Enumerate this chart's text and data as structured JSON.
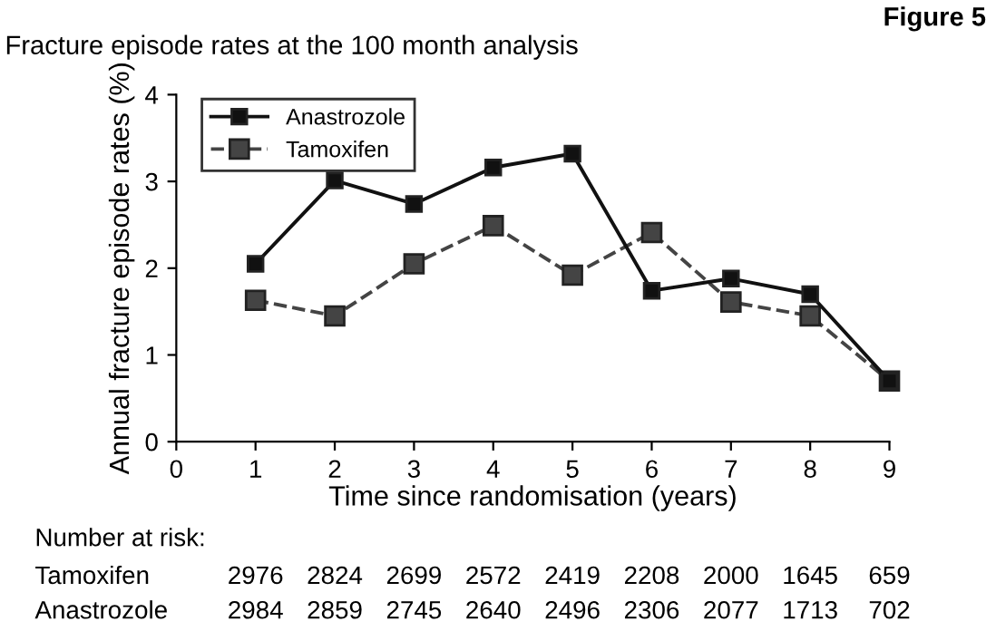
{
  "chart_data": {
    "type": "line",
    "title": "Fracture episode rates at the 100 month analysis",
    "xlabel": "Time since randomisation (years)",
    "ylabel": "Annual fracture episode rates (%)",
    "x": [
      1,
      2,
      3,
      4,
      5,
      6,
      7,
      8,
      9
    ],
    "series": [
      {
        "name": "Anastrozole",
        "color": "#111111",
        "line_style": "solid",
        "values": [
          2.05,
          3.01,
          2.74,
          3.16,
          3.32,
          1.74,
          1.88,
          1.7,
          0.7
        ]
      },
      {
        "name": "Tamoxifen",
        "color": "#444444",
        "line_style": "dashed",
        "values": [
          1.63,
          1.45,
          2.05,
          2.49,
          1.92,
          2.41,
          1.61,
          1.45,
          0.7
        ]
      }
    ],
    "xlim": [
      0,
      9
    ],
    "xticks": [
      0,
      1,
      2,
      3,
      4,
      5,
      6,
      7,
      8,
      9
    ],
    "ylim": [
      0,
      4
    ],
    "yticks": [
      0,
      1,
      2,
      3,
      4
    ],
    "marker": "square",
    "legend": "top left",
    "grid": false,
    "annotations": [
      "Figure 5",
      "Number at risk:",
      "Tamoxifen",
      "2976",
      "2824",
      "2699",
      "2572",
      "2419",
      "2208",
      "2000",
      "1645",
      "659",
      "Anastrozole",
      "2984",
      "2859",
      "2745",
      "2640",
      "2496",
      "2306",
      "2077",
      "1713",
      "702"
    ]
  }
}
